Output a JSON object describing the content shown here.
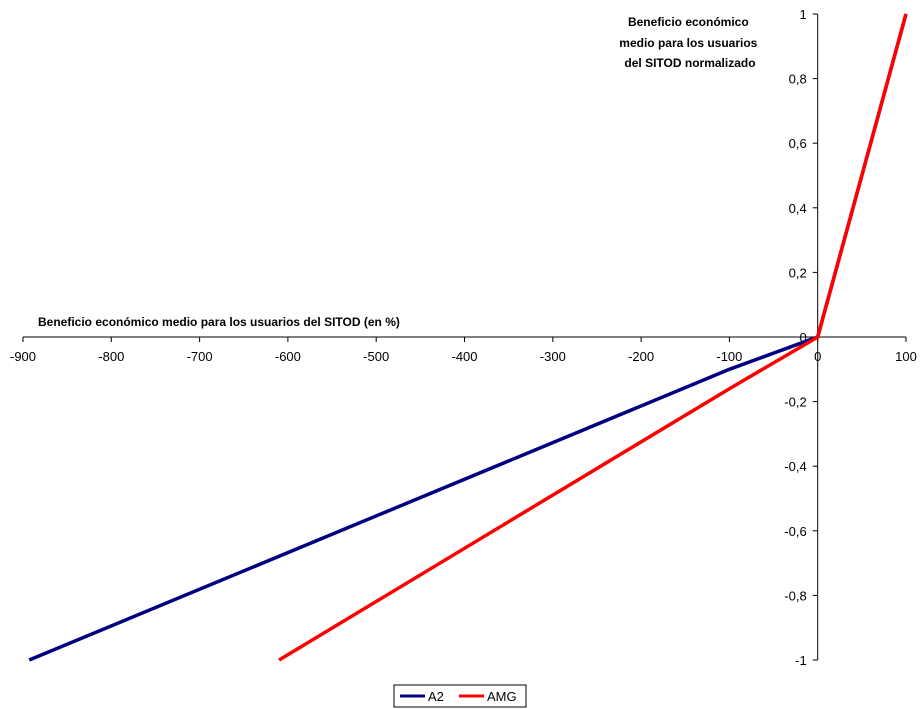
{
  "chart_data": {
    "type": "line",
    "xlabel": "Beneficio económico medio para los usuarios del SITOD (en %)",
    "ylabel_lines": [
      "Beneficio económico",
      "medio para los usuarios",
      "del SITOD normalizado"
    ],
    "xlim": [
      -900,
      100
    ],
    "ylim": [
      -1,
      1
    ],
    "x_ticks": [
      -900,
      -800,
      -700,
      -600,
      -500,
      -400,
      -300,
      -200,
      -100,
      0,
      100
    ],
    "x_tick_labels": [
      "-900",
      "-800",
      "-700",
      "-600",
      "-500",
      "-400",
      "-300",
      "-200",
      "-100",
      "0",
      "100"
    ],
    "y_ticks": [
      -1,
      -0.8,
      -0.6,
      -0.4,
      -0.2,
      0,
      0.2,
      0.4,
      0.6,
      0.8,
      1
    ],
    "y_tick_labels": [
      "-1",
      "-0,8",
      "-0,6",
      "-0,4",
      "-0,2",
      "0",
      "0,2",
      "0,4",
      "0,6",
      "0,8",
      "1"
    ],
    "legend_position": "bottom",
    "grid": false,
    "series": [
      {
        "name": "A2",
        "color": "#000080",
        "points": [
          [
            -893,
            -1
          ],
          [
            -100,
            -0.1
          ],
          [
            -10,
            -0.01
          ],
          [
            0,
            0
          ],
          [
            5,
            0.05
          ],
          [
            100,
            1
          ]
        ]
      },
      {
        "name": "AMG",
        "color": "#ff0000",
        "points": [
          [
            -610,
            -1
          ],
          [
            -100,
            -0.16
          ],
          [
            -10,
            -0.016
          ],
          [
            0,
            0
          ],
          [
            5,
            0.05
          ],
          [
            100,
            1
          ]
        ]
      }
    ]
  }
}
